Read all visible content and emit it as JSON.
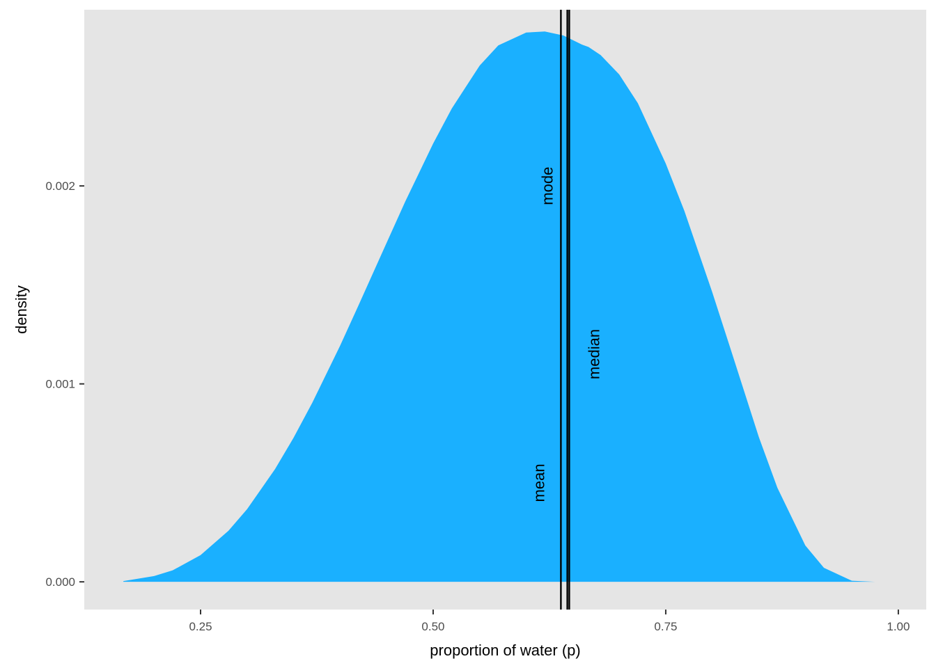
{
  "chart_data": {
    "type": "area",
    "title": "",
    "xlabel": "proportion of water (p)",
    "ylabel": "density",
    "xlim": [
      0.125,
      1.03
    ],
    "ylim": [
      -0.00014,
      0.00289
    ],
    "x_ticks": [
      {
        "value": 0.25,
        "label": "0.25"
      },
      {
        "value": 0.5,
        "label": "0.50"
      },
      {
        "value": 0.75,
        "label": "0.75"
      },
      {
        "value": 1.0,
        "label": "1.00"
      }
    ],
    "y_ticks": [
      {
        "value": 0.0,
        "label": "0.000"
      },
      {
        "value": 0.001,
        "label": "0.001"
      },
      {
        "value": 0.002,
        "label": "0.002"
      }
    ],
    "fill_color": "#1AB0FF",
    "panel_color": "#E5E5E5",
    "line_color": "#000000",
    "grid": false,
    "series": [
      {
        "x": [
          0.167,
          0.2,
          0.22,
          0.25,
          0.28,
          0.3,
          0.33,
          0.35,
          0.37,
          0.4,
          0.42,
          0.45,
          0.47,
          0.5,
          0.52,
          0.55,
          0.57,
          0.6,
          0.62,
          0.64,
          0.66,
          0.667,
          0.68,
          0.7,
          0.72,
          0.75,
          0.77,
          0.8,
          0.82,
          0.85,
          0.87,
          0.9,
          0.92,
          0.95,
          0.975
        ],
        "y": [
          3.6e-06,
          2.9e-05,
          5.8e-05,
          0.000135,
          0.000258,
          0.000367,
          0.000569,
          0.000728,
          0.000904,
          0.001193,
          0.001399,
          0.001713,
          0.001921,
          0.002214,
          0.002391,
          0.002608,
          0.00271,
          0.002775,
          0.00278,
          0.00276,
          0.002714,
          0.002702,
          0.002661,
          0.002563,
          0.002418,
          0.002113,
          0.001874,
          0.001463,
          0.001172,
          0.000732,
          0.000475,
          0.000184,
          7.1e-05,
          5.3e-06,
          3e-08
        ]
      }
    ],
    "vlines": [
      {
        "name": "mean",
        "x": 0.6373,
        "label_y": 0.0005
      },
      {
        "name": "median",
        "x": 0.6442,
        "label_y": 0.00115
      },
      {
        "name": "mode",
        "x": 0.6463,
        "label_y": 0.002
      }
    ]
  }
}
